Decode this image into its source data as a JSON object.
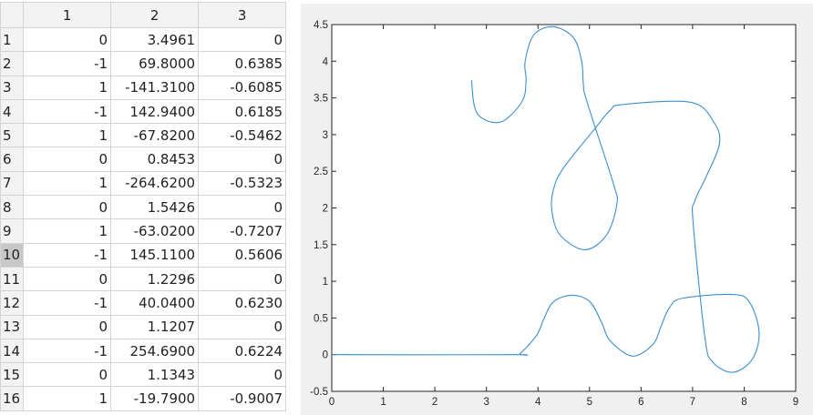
{
  "table": {
    "columns": [
      "1",
      "2",
      "3"
    ],
    "selected_row": "10",
    "rows": [
      {
        "id": "1",
        "c1": "0",
        "c2": "3.4961",
        "c3": "0"
      },
      {
        "id": "2",
        "c1": "-1",
        "c2": "69.8000",
        "c3": "0.6385"
      },
      {
        "id": "3",
        "c1": "1",
        "c2": "-141.3100",
        "c3": "-0.6085"
      },
      {
        "id": "4",
        "c1": "-1",
        "c2": "142.9400",
        "c3": "0.6185"
      },
      {
        "id": "5",
        "c1": "1",
        "c2": "-67.8200",
        "c3": "-0.5462"
      },
      {
        "id": "6",
        "c1": "0",
        "c2": "0.8453",
        "c3": "0"
      },
      {
        "id": "7",
        "c1": "1",
        "c2": "-264.6200",
        "c3": "-0.5323"
      },
      {
        "id": "8",
        "c1": "0",
        "c2": "1.5426",
        "c3": "0"
      },
      {
        "id": "9",
        "c1": "1",
        "c2": "-63.0200",
        "c3": "-0.7207"
      },
      {
        "id": "10",
        "c1": "-1",
        "c2": "145.1100",
        "c3": "0.5606"
      },
      {
        "id": "11",
        "c1": "0",
        "c2": "1.2296",
        "c3": "0"
      },
      {
        "id": "12",
        "c1": "-1",
        "c2": "40.0400",
        "c3": "0.6230"
      },
      {
        "id": "13",
        "c1": "0",
        "c2": "1.1207",
        "c3": "0"
      },
      {
        "id": "14",
        "c1": "-1",
        "c2": "254.6900",
        "c3": "0.6224"
      },
      {
        "id": "15",
        "c1": "0",
        "c2": "1.1343",
        "c3": "0"
      },
      {
        "id": "16",
        "c1": "1",
        "c2": "-19.7900",
        "c3": "-0.9007"
      }
    ]
  },
  "chart_data": {
    "type": "line",
    "xlim": [
      0,
      9
    ],
    "ylim": [
      -0.5,
      4.5
    ],
    "xticks": [
      "0",
      "1",
      "2",
      "3",
      "4",
      "5",
      "6",
      "7",
      "8",
      "9"
    ],
    "yticks": [
      "-0.5",
      "0",
      "0.5",
      "1",
      "1.5",
      "2",
      "2.5",
      "3",
      "3.5",
      "4",
      "4.5"
    ],
    "grid": false,
    "line_color": "#3d8fd1",
    "series": [
      {
        "x": [
          0,
          3.5,
          3.66,
          3.98,
          4.11,
          4.3,
          4.66,
          5.01,
          5.24,
          5.4,
          5.83,
          6.23,
          6.39,
          6.55,
          6.81,
          7.78,
          8.1,
          8.29,
          8.16,
          7.78,
          7.39,
          7.24,
          7.01,
          7.04,
          7.26,
          7.52,
          7.42,
          6.97,
          5.65,
          5.4,
          5.08,
          4.49,
          4.3,
          4.27,
          4.43,
          4.91,
          5.33,
          5.53,
          5.46,
          4.95,
          4.88,
          4.85,
          4.69,
          4.3,
          3.92,
          3.75,
          3.77,
          3.69,
          3.27,
          2.82,
          2.71
        ],
        "y": [
          0,
          0,
          0.02,
          0.27,
          0.48,
          0.72,
          0.81,
          0.72,
          0.43,
          0.19,
          -0.02,
          0.14,
          0.39,
          0.64,
          0.77,
          0.82,
          0.72,
          0.31,
          -0.06,
          -0.24,
          -0.1,
          0.23,
          1.8,
          2.09,
          2.42,
          2.87,
          3.16,
          3.44,
          3.41,
          3.33,
          3.06,
          2.54,
          2.25,
          1.96,
          1.63,
          1.43,
          1.63,
          2.05,
          2.34,
          3.45,
          3.7,
          3.99,
          4.32,
          4.47,
          4.36,
          3.99,
          3.74,
          3.45,
          3.17,
          3.29,
          3.74
        ]
      }
    ]
  }
}
